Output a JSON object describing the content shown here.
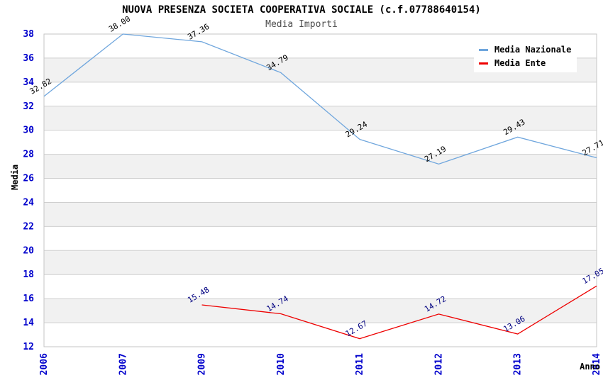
{
  "title": "NUOVA PRESENZA SOCIETA COOPERATIVA SOCIALE (c.f.07788640154)",
  "subtitle": "Media Importi",
  "legend": {
    "position": "top-right",
    "items": [
      {
        "label": "Media Nazionale",
        "color": "#6fa6dd"
      },
      {
        "label": "Media Ente",
        "color": "#ee0000"
      }
    ]
  },
  "chart_data": {
    "type": "line",
    "title": "NUOVA PRESENZA SOCIETA COOPERATIVA SOCIALE (c.f.07788640154)",
    "subtitle": "Media Importi",
    "xlabel": "Anno",
    "ylabel": "Media",
    "categories": [
      "2006",
      "2007",
      "2009",
      "2010",
      "2011",
      "2012",
      "2013",
      "2014"
    ],
    "series": [
      {
        "name": "Media Nazionale",
        "color": "#6fa6dd",
        "label_color": "#000000",
        "values": [
          32.82,
          38.0,
          37.36,
          34.79,
          29.24,
          27.19,
          29.43,
          27.71
        ]
      },
      {
        "name": "Media Ente",
        "color": "#ee0000",
        "label_color": "#000080",
        "values": [
          null,
          null,
          15.48,
          14.74,
          12.67,
          14.72,
          13.06,
          17.05
        ]
      }
    ],
    "ylim": [
      12,
      38
    ],
    "ytick_step": 2,
    "grid": true,
    "legend_position": "top-right"
  },
  "style_colors": {
    "tick_label": "#0000cc",
    "grid_line": "#cfcfcf",
    "plot_border": "#c6c6c6",
    "band_gray": "#f1f1f1",
    "band_white": "#ffffff"
  }
}
